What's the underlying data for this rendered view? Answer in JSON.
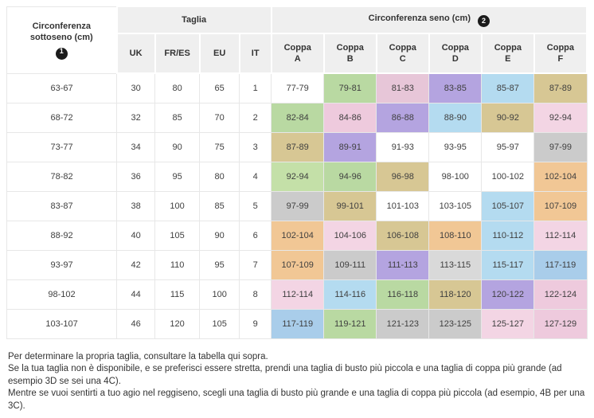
{
  "chart_data": {
    "type": "table",
    "header": {
      "underbust": "Circonferenza sottoseno (cm)",
      "underbust_badge": "1",
      "taglia": "Taglia",
      "seno": "Circonferenza seno (cm)",
      "seno_badge": "2",
      "size_columns": [
        "UK",
        "FR/ES",
        "EU",
        "IT"
      ],
      "cup_columns": [
        "Coppa A",
        "Coppa B",
        "Coppa C",
        "Coppa D",
        "Coppa E",
        "Coppa F"
      ]
    },
    "rows": [
      {
        "underbust": "63-67",
        "sizes": [
          "30",
          "80",
          "65",
          "1"
        ],
        "cups": [
          "77-79",
          "79-81",
          "81-83",
          "83-85",
          "85-87",
          "87-89"
        ],
        "cup_colors": [
          "#ffffff",
          "#b9d9a2",
          "#e7c6d8",
          "#b4a4e0",
          "#b4dbf0",
          "#d7c794"
        ]
      },
      {
        "underbust": "68-72",
        "sizes": [
          "32",
          "85",
          "70",
          "2"
        ],
        "cups": [
          "82-84",
          "84-86",
          "86-88",
          "88-90",
          "90-92",
          "92-94"
        ],
        "cup_colors": [
          "#b9d9a2",
          "#eecadd",
          "#b4a4e0",
          "#b4dbf0",
          "#d7c794",
          "#f3d5e4"
        ]
      },
      {
        "underbust": "73-77",
        "sizes": [
          "34",
          "90",
          "75",
          "3"
        ],
        "cups": [
          "87-89",
          "89-91",
          "91-93",
          "93-95",
          "95-97",
          "97-99"
        ],
        "cup_colors": [
          "#d7c794",
          "#b4a4e0",
          "#ffffff",
          "#ffffff",
          "#ffffff",
          "#cbcbcb"
        ]
      },
      {
        "underbust": "78-82",
        "sizes": [
          "36",
          "95",
          "80",
          "4"
        ],
        "cups": [
          "92-94",
          "94-96",
          "96-98",
          "98-100",
          "100-102",
          "102-104"
        ],
        "cup_colors": [
          "#c4e0a8",
          "#b9d9a2",
          "#d7c794",
          "#ffffff",
          "#ffffff",
          "#f1c795"
        ]
      },
      {
        "underbust": "83-87",
        "sizes": [
          "38",
          "100",
          "85",
          "5"
        ],
        "cups": [
          "97-99",
          "99-101",
          "101-103",
          "103-105",
          "105-107",
          "107-109"
        ],
        "cup_colors": [
          "#cbcbcb",
          "#d7c794",
          "#ffffff",
          "#ffffff",
          "#b4dbf0",
          "#f1c795"
        ]
      },
      {
        "underbust": "88-92",
        "sizes": [
          "40",
          "105",
          "90",
          "6"
        ],
        "cups": [
          "102-104",
          "104-106",
          "106-108",
          "108-110",
          "110-112",
          "112-114"
        ],
        "cup_colors": [
          "#f1c795",
          "#f3d5e4",
          "#d7c794",
          "#f1c795",
          "#b4dbf0",
          "#f3d5e4"
        ]
      },
      {
        "underbust": "93-97",
        "sizes": [
          "42",
          "110",
          "95",
          "7"
        ],
        "cups": [
          "107-109",
          "109-111",
          "111-113",
          "113-115",
          "115-117",
          "117-119"
        ],
        "cup_colors": [
          "#f1c795",
          "#cbcbcb",
          "#b4a4e0",
          "#d9d9d9",
          "#b4dbf0",
          "#a9cdea"
        ]
      },
      {
        "underbust": "98-102",
        "sizes": [
          "44",
          "115",
          "100",
          "8"
        ],
        "cups": [
          "112-114",
          "114-116",
          "116-118",
          "118-120",
          "120-122",
          "122-124"
        ],
        "cup_colors": [
          "#f3d5e4",
          "#b4dbf0",
          "#b9d9a2",
          "#d7c794",
          "#b4a4e0",
          "#eecadd"
        ]
      },
      {
        "underbust": "103-107",
        "sizes": [
          "46",
          "120",
          "105",
          "9"
        ],
        "cups": [
          "117-119",
          "119-121",
          "121-123",
          "123-125",
          "125-127",
          "127-129"
        ],
        "cup_colors": [
          "#a9cdea",
          "#b9d9a2",
          "#cbcbcb",
          "#cbcbcb",
          "#f3d5e4",
          "#eecadd"
        ]
      }
    ]
  },
  "footer": {
    "line1": "Per determinare la propria taglia, consultare la tabella qui sopra.",
    "line2": "Se la tua taglia non è disponibile, e se preferisci essere stretta, prendi una taglia di busto più piccola e una taglia di coppa più grande (ad esempio 3D se sei una 4C).",
    "line3": "Mentre se vuoi sentirti a tuo agio nel reggiseno, scegli una taglia di busto più grande e una taglia di coppa più piccola (ad esempio, 4B per una 3C)."
  }
}
